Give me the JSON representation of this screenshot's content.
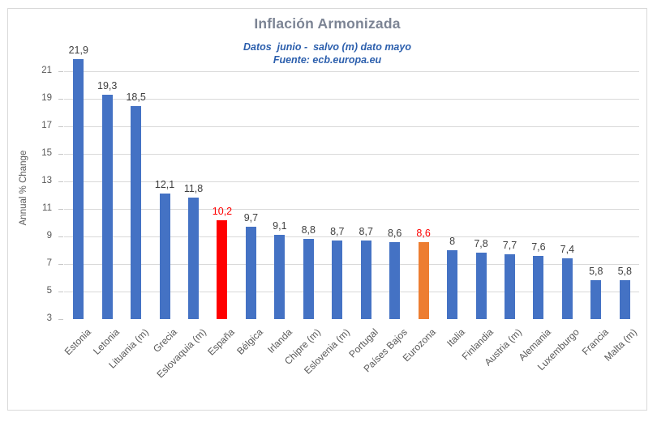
{
  "chart": {
    "title": "Inflación Armonizada",
    "subtitle_line1": "Datos  junio -  salvo (m) dato mayo",
    "subtitle_line2": "Fuente: ecb.europa.eu",
    "y_axis_title": "Annual % Change"
  },
  "chart_data": {
    "type": "bar",
    "title": "Inflación Armonizada",
    "subtitle": "Datos  junio -  salvo (m) dato mayo",
    "source": "Fuente: ecb.europa.eu",
    "xlabel": "",
    "ylabel": "Annual % Change",
    "ylim": [
      3,
      22
    ],
    "yticks": [
      3,
      5,
      7,
      9,
      11,
      13,
      15,
      17,
      19,
      21
    ],
    "grid": "horizontal",
    "legend": "none",
    "categories": [
      "Estonia",
      "Letonia",
      "Lituania (m)",
      "Grecia",
      "Eslovaquia (m)",
      "España",
      "Bélgica",
      "Irlanda",
      "Chipre (m)",
      "Eslovenia (m)",
      "Portugal",
      "Países Bajos",
      "Eurozona",
      "Italia",
      "Finlandia",
      "Austria (m)",
      "Alemania",
      "Luxemburgo",
      "Francia",
      "Malta (m)"
    ],
    "values": [
      21.9,
      19.3,
      18.5,
      12.1,
      11.8,
      10.2,
      9.7,
      9.1,
      8.8,
      8.7,
      8.7,
      8.6,
      8.6,
      8,
      7.8,
      7.7,
      7.6,
      7.4,
      5.8,
      5.8
    ],
    "value_labels": [
      "21,9",
      "19,3",
      "18,5",
      "12,1",
      "11,8",
      "10,2",
      "9,7",
      "9,1",
      "8,8",
      "8,7",
      "8,7",
      "8,6",
      "8,6",
      "8",
      "7,8",
      "7,7",
      "7,6",
      "7,4",
      "5,8",
      "5,8"
    ],
    "bar_color_default": "#4472C4",
    "bar_colors": {
      "5": "#FF0000",
      "12": "#ED7D31"
    },
    "label_color_default": "#404040",
    "label_colors": {
      "5": "#FF0000",
      "12": "#FF0000"
    },
    "highlighted_bars": {
      "España": "#FF0000",
      "Eurozona": "#ED7D31"
    },
    "grid_color": "#D9D9D9",
    "axis_text_color": "#595959",
    "title_color": "#7C8494",
    "subtitle_color": "#2C5FAD"
  }
}
